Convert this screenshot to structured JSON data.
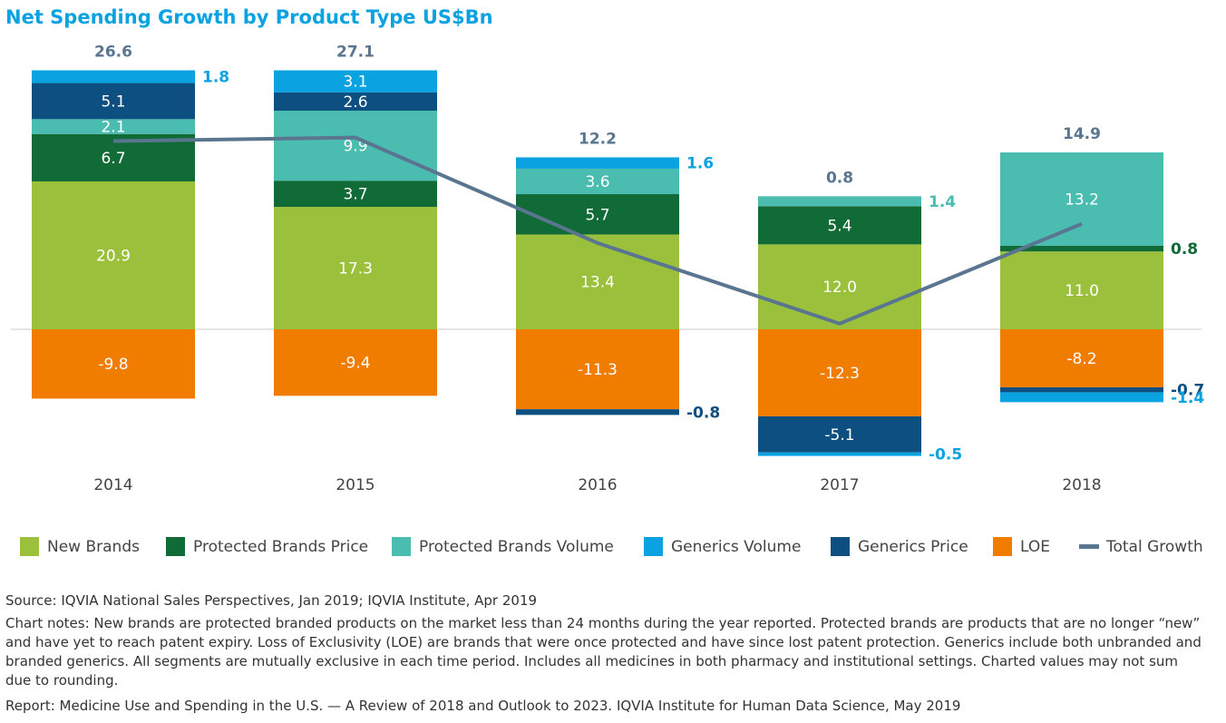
{
  "chart_data": {
    "type": "bar",
    "stacked": true,
    "title": "Net Spending Growth by Product Type US$Bn",
    "categories": [
      "2014",
      "2015",
      "2016",
      "2017",
      "2018"
    ],
    "series": [
      {
        "name": "New Brands",
        "color": "#9bc13c",
        "values": [
          20.9,
          17.3,
          13.4,
          12.0,
          11.0
        ],
        "value_labels": [
          "20.9",
          "17.3",
          "13.4",
          "12.0",
          "11.0"
        ]
      },
      {
        "name": "Protected Brands Price",
        "color": "#116b37",
        "values": [
          6.7,
          3.7,
          5.7,
          5.4,
          0.8
        ]
      },
      {
        "name": "Protected Brands Volume",
        "color": "#4bbcb0",
        "values": [
          2.1,
          9.9,
          3.6,
          1.4,
          13.2
        ]
      },
      {
        "name": "Generics Volume",
        "color": "#0aa2e0",
        "values": [
          1.8,
          3.1,
          1.6,
          -0.5,
          -1.4
        ]
      },
      {
        "name": "Generics Price",
        "color": "#0d4f80",
        "values": [
          5.1,
          2.6,
          -0.8,
          -5.1,
          -0.7
        ]
      },
      {
        "name": "LOE",
        "color": "#f07d00",
        "values": [
          -9.8,
          -9.4,
          -11.3,
          -12.3,
          -8.2
        ]
      },
      {
        "name": "Total Growth",
        "type": "line",
        "color": "#5a7590",
        "values": [
          26.6,
          27.1,
          12.2,
          0.8,
          14.9
        ]
      }
    ]
  },
  "notes": {
    "source": "Source: IQVIA National Sales Perspectives, Jan 2019; IQVIA Institute, Apr 2019",
    "chart_notes": "Chart notes: New brands are protected branded products on the market less than 24 months during the year reported. Protected brands are products that are no longer “new” and have yet to reach patent expiry. Loss of Exclusivity (LOE) are brands that were once protected and have since lost patent protection. Generics include both unbranded and branded generics. All segments are mutually exclusive in each time period. Includes all medicines in both pharmacy and institutional settings. Charted values may not sum due to rounding.",
    "report": "Report: Medicine Use and Spending in the U.S. — A Review of 2018 and Outlook to 2023. IQVIA Institute for Human Data Science, May 2019"
  }
}
